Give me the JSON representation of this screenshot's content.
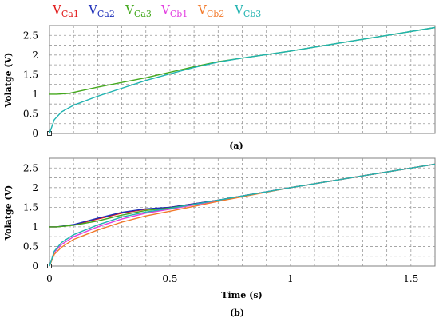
{
  "colors": {
    "VCa1": "#e11919",
    "VCa2": "#1d2fb8",
    "VCa3": "#43a81c",
    "VCb1": "#e23de0",
    "VCb2": "#f2792a",
    "VCb3": "#20b3b0"
  },
  "legend": [
    {
      "main": "V",
      "sub": "Ca1",
      "color_key": "VCa1"
    },
    {
      "main": "V",
      "sub": "Ca2",
      "color_key": "VCa2"
    },
    {
      "main": "V",
      "sub": "Ca3",
      "color_key": "VCa3"
    },
    {
      "main": "V",
      "sub": "Cb1",
      "color_key": "VCb1"
    },
    {
      "main": "V",
      "sub": "Cb2",
      "color_key": "VCb2"
    },
    {
      "main": "V",
      "sub": "Cb3",
      "color_key": "VCb3"
    }
  ],
  "chart_data": [
    {
      "type": "line",
      "panel_label": "(a)",
      "xlabel": "",
      "ylabel": "Volatge (V)",
      "xlim": [
        0,
        1.6
      ],
      "ylim": [
        0,
        2.75
      ],
      "yticks": [
        "0",
        "0.5",
        "1",
        "1.5",
        "2",
        "2.5"
      ],
      "xticks": [],
      "grid": true,
      "series": [
        {
          "name": "VCa3",
          "x": [
            0,
            0.03,
            0.08,
            0.2,
            0.4,
            0.6,
            0.7,
            0.8,
            1.0,
            1.2,
            1.4,
            1.6
          ],
          "y": [
            1.0,
            1.0,
            1.02,
            1.18,
            1.42,
            1.7,
            1.83,
            1.92,
            2.1,
            2.3,
            2.5,
            2.7
          ]
        },
        {
          "name": "VCb3",
          "x": [
            0,
            0.02,
            0.05,
            0.1,
            0.2,
            0.3,
            0.4,
            0.5,
            0.6,
            0.7,
            0.8,
            1.0,
            1.2,
            1.4,
            1.6
          ],
          "y": [
            0,
            0.35,
            0.55,
            0.72,
            0.95,
            1.15,
            1.35,
            1.52,
            1.68,
            1.82,
            1.92,
            2.1,
            2.3,
            2.5,
            2.7
          ]
        }
      ]
    },
    {
      "type": "line",
      "panel_label": "(b)",
      "xlabel": "Time (s)",
      "ylabel": "Volatge (V)",
      "xlim": [
        0,
        1.6
      ],
      "ylim": [
        0,
        2.75
      ],
      "yticks": [
        "0",
        "0.5",
        "1",
        "1.5",
        "2",
        "2.5"
      ],
      "xticks": [
        "0",
        "0.5",
        "1",
        "1.5"
      ],
      "grid": true,
      "series": [
        {
          "name": "VCa1",
          "x": [
            0,
            0.03,
            0.1,
            0.2,
            0.3,
            0.4,
            0.5,
            0.7,
            1.0,
            1.3,
            1.6
          ],
          "y": [
            1.0,
            1.0,
            1.05,
            1.2,
            1.35,
            1.45,
            1.5,
            1.68,
            2.0,
            2.3,
            2.6
          ]
        },
        {
          "name": "VCa2",
          "x": [
            0,
            0.03,
            0.1,
            0.2,
            0.3,
            0.4,
            0.5,
            0.7,
            1.0,
            1.3,
            1.6
          ],
          "y": [
            1.0,
            1.0,
            1.06,
            1.22,
            1.37,
            1.46,
            1.5,
            1.68,
            2.0,
            2.3,
            2.6
          ]
        },
        {
          "name": "VCa3",
          "x": [
            0,
            0.03,
            0.1,
            0.2,
            0.3,
            0.4,
            0.5,
            0.7,
            1.0,
            1.3,
            1.6
          ],
          "y": [
            1.0,
            1.0,
            1.04,
            1.15,
            1.3,
            1.42,
            1.48,
            1.67,
            2.0,
            2.3,
            2.6
          ]
        },
        {
          "name": "VCb1",
          "x": [
            0,
            0.02,
            0.05,
            0.1,
            0.2,
            0.3,
            0.4,
            0.5,
            0.7,
            1.0,
            1.3,
            1.6
          ],
          "y": [
            0,
            0.35,
            0.55,
            0.75,
            1.0,
            1.2,
            1.35,
            1.45,
            1.67,
            2.0,
            2.3,
            2.6
          ]
        },
        {
          "name": "VCb2",
          "x": [
            0,
            0.02,
            0.05,
            0.1,
            0.2,
            0.3,
            0.4,
            0.5,
            0.7,
            1.0,
            1.3,
            1.6
          ],
          "y": [
            0,
            0.3,
            0.48,
            0.68,
            0.92,
            1.12,
            1.28,
            1.4,
            1.65,
            2.0,
            2.3,
            2.6
          ]
        },
        {
          "name": "VCb3",
          "x": [
            0,
            0.02,
            0.05,
            0.1,
            0.2,
            0.3,
            0.4,
            0.5,
            0.7,
            1.0,
            1.3,
            1.6
          ],
          "y": [
            0,
            0.38,
            0.6,
            0.8,
            1.05,
            1.25,
            1.38,
            1.47,
            1.68,
            2.0,
            2.3,
            2.6
          ]
        }
      ]
    }
  ]
}
